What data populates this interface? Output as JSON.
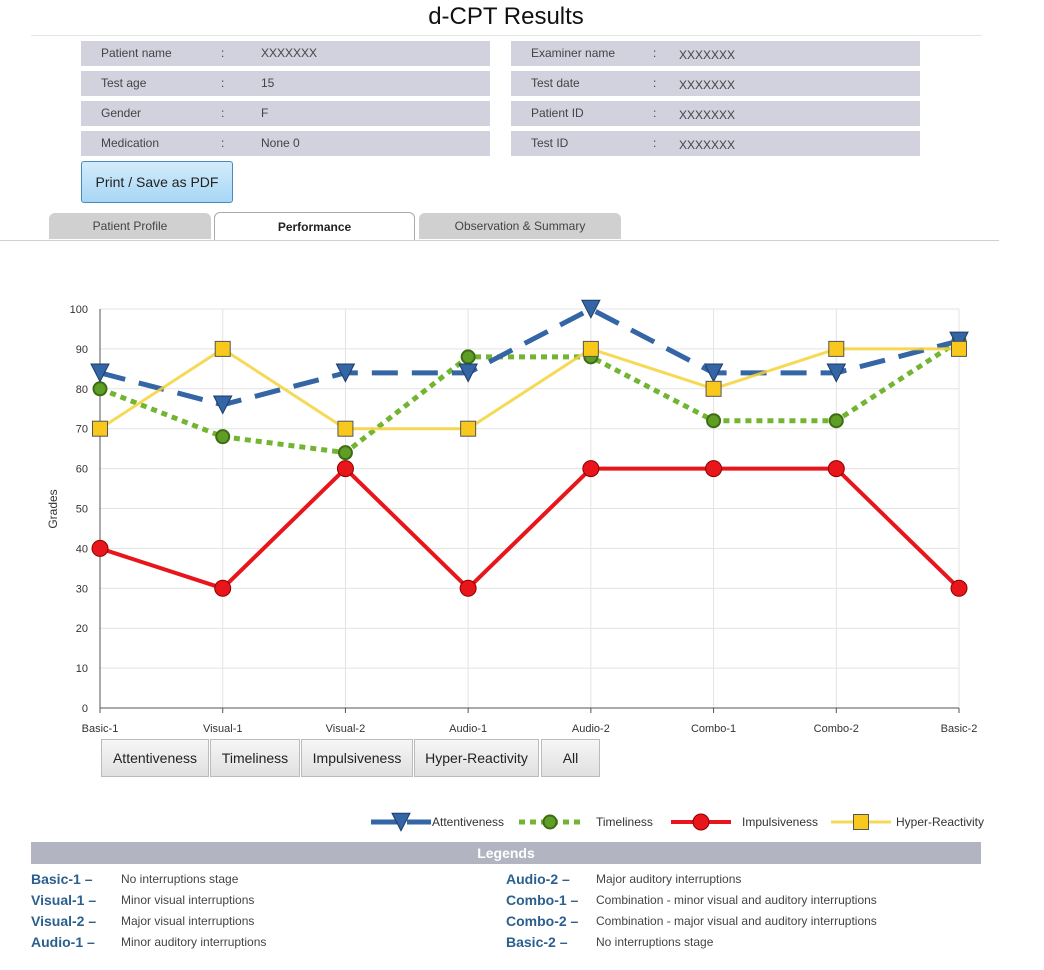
{
  "title": "d-CPT Results",
  "patient_info_left": [
    {
      "label": "Patient name",
      "value": "XXXXXXX"
    },
    {
      "label": "Test age",
      "value": "15"
    },
    {
      "label": "Gender",
      "value": "F"
    },
    {
      "label": "Medication",
      "value": "None 0"
    }
  ],
  "patient_info_right": [
    {
      "label": "Examiner name",
      "value": "XXXXXXX"
    },
    {
      "label": "Test date",
      "value": "XXXXXXX"
    },
    {
      "label": "Patient ID",
      "value": "XXXXXXX"
    },
    {
      "label": "Test ID",
      "value": "XXXXXXX"
    }
  ],
  "colon": ":",
  "print_button": "Print / Save as PDF",
  "tabs": [
    "Patient Profile",
    "Performance",
    "Observation & Summary"
  ],
  "active_tab": "Performance",
  "chart_data": {
    "type": "line",
    "ylabel": "Grades",
    "ylim": [
      0,
      100
    ],
    "yticks": [
      0,
      10,
      20,
      30,
      40,
      50,
      60,
      70,
      80,
      90,
      100
    ],
    "grid": true,
    "categories": [
      "Basic-1",
      "Visual-1",
      "Visual-2",
      "Audio-1",
      "Audio-2",
      "Combo-1",
      "Combo-2",
      "Basic-2"
    ],
    "series": [
      {
        "name": "Attentiveness",
        "color": "#3465a4",
        "marker": "triangle-down",
        "style": "dashed",
        "values": [
          84,
          76,
          84,
          84,
          100,
          84,
          84,
          92
        ]
      },
      {
        "name": "Timeliness",
        "color": "#73b532",
        "marker": "circle",
        "style": "dotted",
        "values": [
          80,
          68,
          64,
          88,
          88,
          72,
          72,
          92
        ]
      },
      {
        "name": "Impulsiveness",
        "color": "#e8151b",
        "marker": "circle",
        "style": "solid",
        "values": [
          40,
          30,
          60,
          30,
          60,
          60,
          60,
          30
        ]
      },
      {
        "name": "Hyper-Reactivity",
        "color": "#f5d23a",
        "marker": "square",
        "style": "solid",
        "values": [
          70,
          90,
          70,
          70,
          90,
          80,
          90,
          90
        ]
      }
    ],
    "legend_position": "bottom-right"
  },
  "filter_buttons": [
    "Attentiveness",
    "Timeliness",
    "Impulsiveness",
    "Hyper-Reactivity",
    "All"
  ],
  "legends_title": "Legends",
  "legends_left": [
    {
      "key": "Basic-1 –",
      "desc": "No interruptions stage"
    },
    {
      "key": "Visual-1 –",
      "desc": "Minor visual interruptions"
    },
    {
      "key": "Visual-2 –",
      "desc": "Major visual interruptions"
    },
    {
      "key": "Audio-1 –",
      "desc": "Minor auditory interruptions"
    }
  ],
  "legends_right": [
    {
      "key": "Audio-2 –",
      "desc": "Major auditory interruptions"
    },
    {
      "key": "Combo-1 –",
      "desc": "Combination - minor visual and auditory interruptions"
    },
    {
      "key": "Combo-2 –",
      "desc": "Combination - major visual and auditory interruptions"
    },
    {
      "key": "Basic-2 –",
      "desc": "No interruptions stage"
    }
  ]
}
